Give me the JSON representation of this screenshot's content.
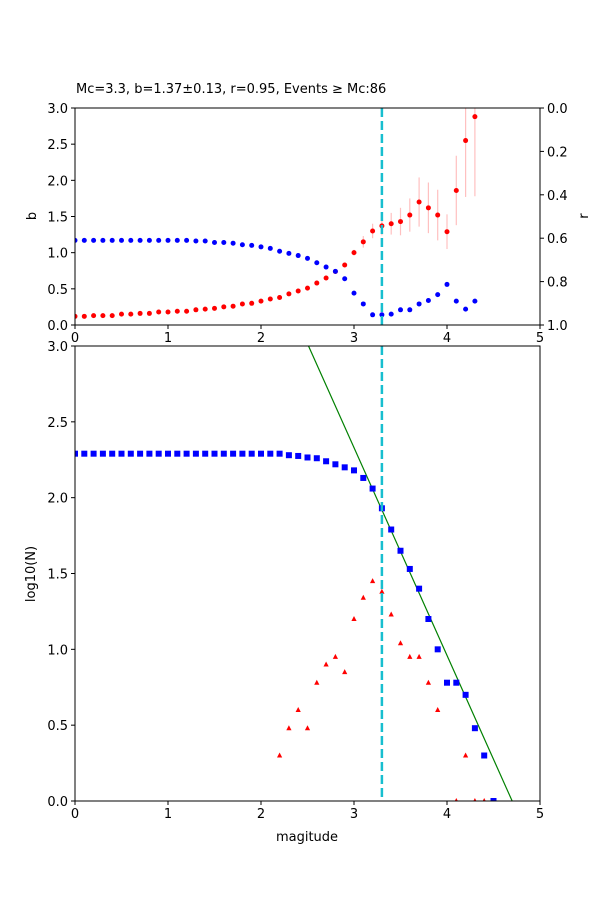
{
  "chart_data": [
    {
      "type": "scatter",
      "title": "Mc=3.3, b=1.37±0.13, r=0.95, Events ≥ Mc:86",
      "xlabel": "",
      "ylabel": "b",
      "ylabel_right": "r",
      "xlim": [
        0,
        5
      ],
      "ylim": [
        0,
        3
      ],
      "ylim_right": [
        1,
        0
      ],
      "right_axis_inverted": true,
      "xticks": [
        "0",
        "1",
        "2",
        "3",
        "4",
        "5"
      ],
      "yticks": [
        "0.0",
        "0.5",
        "1.0",
        "1.5",
        "2.0",
        "2.5",
        "3.0"
      ],
      "yticks_right": [
        "0.0",
        "0.2",
        "0.4",
        "0.6",
        "0.8",
        "1.0"
      ],
      "x": [
        0.0,
        0.1,
        0.2,
        0.3,
        0.4,
        0.5,
        0.6,
        0.7,
        0.8,
        0.9,
        1.0,
        1.1,
        1.2,
        1.3,
        1.4,
        1.5,
        1.6,
        1.7,
        1.8,
        1.9,
        2.0,
        2.1,
        2.2,
        2.3,
        2.4,
        2.5,
        2.6,
        2.7,
        2.8,
        2.9,
        3.0,
        3.1,
        3.2,
        3.3,
        3.4,
        3.5,
        3.6,
        3.7,
        3.8,
        3.9,
        4.0,
        4.1,
        4.2,
        4.3
      ],
      "series": [
        {
          "axis": "left",
          "color": "#ff0000",
          "marker": "circle",
          "values": [
            0.12,
            0.12,
            0.13,
            0.13,
            0.13,
            0.15,
            0.15,
            0.16,
            0.16,
            0.18,
            0.18,
            0.19,
            0.19,
            0.21,
            0.22,
            0.23,
            0.25,
            0.26,
            0.29,
            0.3,
            0.33,
            0.36,
            0.38,
            0.43,
            0.47,
            0.51,
            0.58,
            0.65,
            0.74,
            0.83,
            1.0,
            1.15,
            1.3,
            1.37,
            1.4,
            1.43,
            1.52,
            1.7,
            1.62,
            1.52,
            1.29,
            1.86,
            2.55,
            2.88
          ],
          "errors": [
            0,
            0,
            0,
            0,
            0,
            0,
            0,
            0,
            0,
            0,
            0,
            0,
            0,
            0,
            0,
            0,
            0,
            0,
            0,
            0,
            0,
            0,
            0,
            0,
            0,
            0,
            0,
            0,
            0,
            0.03,
            0.04,
            0.08,
            0.1,
            0.13,
            0.15,
            0.19,
            0.23,
            0.34,
            0.35,
            0.35,
            0.24,
            0.48,
            0.78,
            1.1
          ],
          "error_color": "#ffc0c0"
        },
        {
          "axis": "right",
          "color": "#0000ff",
          "marker": "circle",
          "values": [
            0.61,
            0.61,
            0.61,
            0.61,
            0.61,
            0.61,
            0.61,
            0.61,
            0.61,
            0.61,
            0.61,
            0.61,
            0.61,
            0.613,
            0.613,
            0.62,
            0.62,
            0.623,
            0.63,
            0.633,
            0.64,
            0.647,
            0.66,
            0.67,
            0.68,
            0.693,
            0.713,
            0.733,
            0.753,
            0.787,
            0.853,
            0.903,
            0.953,
            0.953,
            0.95,
            0.93,
            0.93,
            0.903,
            0.887,
            0.86,
            0.813,
            0.89,
            0.927,
            0.89
          ]
        }
      ],
      "mc_line": {
        "x": 3.3,
        "color": "#17becf",
        "style": "dashed"
      }
    },
    {
      "type": "scatter",
      "xlabel": "magitude",
      "ylabel": "log10(N)",
      "xlim": [
        0,
        5
      ],
      "ylim": [
        0,
        3
      ],
      "xticks": [
        "0",
        "1",
        "2",
        "3",
        "4",
        "5"
      ],
      "yticks": [
        "0.0",
        "0.5",
        "1.0",
        "1.5",
        "2.0",
        "2.5",
        "3.0"
      ],
      "series": [
        {
          "color": "#0000ff",
          "marker": "square",
          "x": [
            0.0,
            0.1,
            0.2,
            0.3,
            0.4,
            0.5,
            0.6,
            0.7,
            0.8,
            0.9,
            1.0,
            1.1,
            1.2,
            1.3,
            1.4,
            1.5,
            1.6,
            1.7,
            1.8,
            1.9,
            2.0,
            2.1,
            2.2,
            2.3,
            2.4,
            2.5,
            2.6,
            2.7,
            2.8,
            2.9,
            3.0,
            3.1,
            3.2,
            3.3,
            3.4,
            3.5,
            3.6,
            3.7,
            3.8,
            3.9,
            4.0,
            4.1,
            4.2,
            4.3,
            4.4,
            4.5
          ],
          "values": [
            2.29,
            2.29,
            2.29,
            2.29,
            2.29,
            2.29,
            2.29,
            2.29,
            2.29,
            2.29,
            2.29,
            2.29,
            2.29,
            2.29,
            2.29,
            2.29,
            2.29,
            2.29,
            2.29,
            2.29,
            2.29,
            2.29,
            2.29,
            2.28,
            2.275,
            2.265,
            2.26,
            2.24,
            2.22,
            2.2,
            2.18,
            2.13,
            2.06,
            1.93,
            1.79,
            1.65,
            1.53,
            1.4,
            1.2,
            1.0,
            0.78,
            0.78,
            0.7,
            0.48,
            0.3,
            0.0
          ]
        },
        {
          "color": "#ff0000",
          "marker": "triangle",
          "x": [
            2.2,
            2.3,
            2.4,
            2.5,
            2.6,
            2.7,
            2.8,
            2.9,
            3.0,
            3.1,
            3.2,
            3.3,
            3.4,
            3.5,
            3.6,
            3.7,
            3.8,
            3.9,
            4.1,
            4.2,
            4.3,
            4.4
          ],
          "values": [
            0.3,
            0.48,
            0.6,
            0.48,
            0.78,
            0.9,
            0.95,
            0.85,
            1.2,
            1.34,
            1.45,
            1.38,
            1.23,
            1.04,
            0.95,
            0.95,
            0.78,
            0.6,
            0.0,
            0.3,
            0.0,
            0.0
          ]
        }
      ],
      "fit_line": {
        "a": 6.44,
        "b": 1.37,
        "color": "#008000"
      },
      "mc_line": {
        "x": 3.3,
        "color": "#17becf",
        "style": "dashed"
      }
    }
  ]
}
